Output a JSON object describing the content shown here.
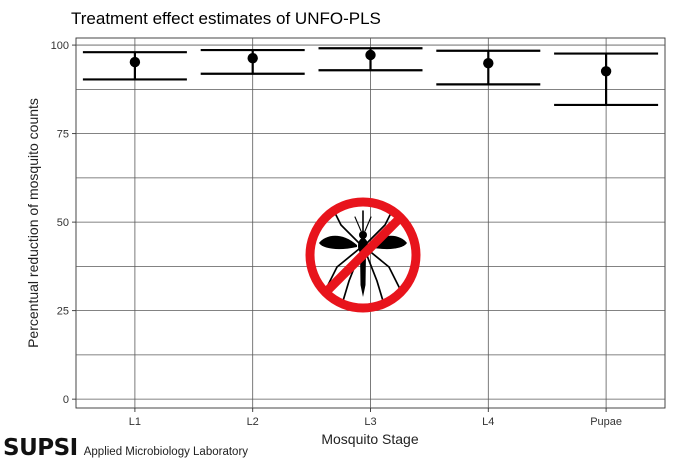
{
  "chart_data": {
    "type": "scatter",
    "title": "Treatment effect estimates of UNFO-PLS",
    "xlabel": "Mosquito Stage",
    "ylabel": "Percentual reduction of mosquito counts",
    "categories": [
      "L1",
      "L2",
      "L3",
      "L4",
      "Pupae"
    ],
    "estimate": [
      95.2,
      96.3,
      97.2,
      94.9,
      92.6
    ],
    "lower": [
      90.3,
      91.9,
      92.9,
      88.9,
      83.1
    ],
    "upper": [
      98.0,
      98.6,
      99.1,
      98.4,
      97.6
    ],
    "ylim": [
      -2.5,
      102
    ],
    "yticks": [
      0,
      25,
      50,
      75,
      100
    ],
    "grid": true,
    "legend": "none"
  },
  "branding": {
    "logo_text": "SUPSI",
    "subtitle": "Applied Microbiology Laboratory"
  },
  "overlay": {
    "icon": "no-mosquito-icon",
    "ring_color": "#e8141c"
  }
}
